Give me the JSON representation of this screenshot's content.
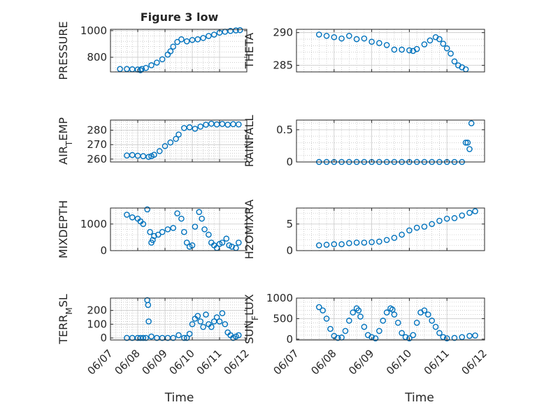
{
  "figure": {
    "title": "Figure 3 low",
    "marker_color": "#0072BD",
    "axis_color": "#262626",
    "grid_color": "#b0b0b0"
  },
  "chart_data": [
    {
      "type": "scatter",
      "ylabel": "PRESSURE",
      "title": "Figure 3 low",
      "xlim": [
        0,
        5
      ],
      "ylim": [
        690,
        1010
      ],
      "yticks": [
        800,
        1000
      ],
      "x": [
        0.35,
        0.6,
        0.8,
        1.0,
        1.1,
        1.15,
        1.3,
        1.5,
        1.7,
        1.9,
        2.1,
        2.2,
        2.3,
        2.45,
        2.6,
        2.8,
        3.0,
        3.2,
        3.4,
        3.6,
        3.8,
        4.0,
        4.2,
        4.4,
        4.6,
        4.75
      ],
      "y": [
        712,
        712,
        710,
        708,
        703,
        712,
        720,
        740,
        760,
        785,
        820,
        845,
        880,
        915,
        935,
        920,
        930,
        935,
        945,
        960,
        970,
        985,
        992,
        998,
        1002,
        1004
      ]
    },
    {
      "type": "scatter",
      "ylabel": "THETA",
      "xlim": [
        0,
        5
      ],
      "ylim": [
        284,
        290.5
      ],
      "yticks": [
        285,
        290
      ],
      "x": [
        0.6,
        0.8,
        1.0,
        1.2,
        1.4,
        1.6,
        1.8,
        2.0,
        2.2,
        2.4,
        2.6,
        2.8,
        3.0,
        3.1,
        3.2,
        3.4,
        3.55,
        3.7,
        3.8,
        3.9,
        4.0,
        4.1,
        4.2,
        4.3,
        4.4,
        4.5
      ],
      "y": [
        289.7,
        289.5,
        289.3,
        289.1,
        289.5,
        289.0,
        289.1,
        288.6,
        288.4,
        288.1,
        287.4,
        287.4,
        287.3,
        287.2,
        287.5,
        288.2,
        288.8,
        289.3,
        289.0,
        288.3,
        287.6,
        286.8,
        285.6,
        285.0,
        284.7,
        284.4
      ]
    },
    {
      "type": "scatter",
      "ylabel": "AIR_TEMP",
      "xlim": [
        0,
        5
      ],
      "ylim": [
        258,
        287
      ],
      "yticks": [
        260,
        270,
        280
      ],
      "x": [
        0.6,
        0.8,
        1.0,
        1.2,
        1.4,
        1.5,
        1.6,
        1.8,
        2.0,
        2.2,
        2.4,
        2.5,
        2.7,
        2.9,
        3.1,
        3.3,
        3.5,
        3.7,
        3.9,
        4.1,
        4.3,
        4.5,
        4.7
      ],
      "y": [
        262.5,
        262.8,
        262.3,
        262.0,
        261.5,
        262.0,
        263.0,
        265.5,
        269.0,
        271.5,
        274.0,
        277.0,
        281.5,
        282.0,
        281.0,
        282.5,
        283.8,
        284.5,
        284.0,
        284.3,
        283.8,
        284.2,
        284.0
      ]
    },
    {
      "type": "scatter",
      "ylabel": "RAINFALL",
      "xlim": [
        0,
        5
      ],
      "ylim": [
        0,
        0.65
      ],
      "yticks": [
        0,
        0.5
      ],
      "x": [
        0.6,
        0.8,
        1.0,
        1.2,
        1.4,
        1.6,
        1.8,
        2.0,
        2.2,
        2.4,
        2.6,
        2.8,
        3.0,
        3.2,
        3.4,
        3.6,
        3.8,
        4.0,
        4.2,
        4.4,
        4.5,
        4.55,
        4.6,
        4.65
      ],
      "y": [
        0,
        0,
        0,
        0,
        0,
        0,
        0,
        0,
        0,
        0,
        0,
        0,
        0,
        0,
        0,
        0,
        0,
        0,
        0,
        0,
        0.3,
        0.3,
        0.2,
        0.6
      ]
    },
    {
      "type": "scatter",
      "ylabel": "MIXDEPTH",
      "xlim": [
        0,
        5
      ],
      "ylim": [
        0,
        1600
      ],
      "yticks": [
        0,
        1000
      ],
      "x": [
        0.6,
        0.8,
        1.0,
        1.1,
        1.2,
        1.35,
        1.45,
        1.5,
        1.55,
        1.6,
        1.75,
        1.9,
        2.1,
        2.3,
        2.45,
        2.6,
        2.7,
        2.8,
        2.9,
        3.0,
        3.1,
        3.25,
        3.35,
        3.45,
        3.6,
        3.7,
        3.8,
        3.9,
        4.0,
        4.1,
        4.25,
        4.35,
        4.45,
        4.6,
        4.7
      ],
      "y": [
        1350,
        1250,
        1200,
        1100,
        1000,
        1550,
        700,
        300,
        400,
        550,
        600,
        700,
        800,
        850,
        1400,
        1200,
        700,
        300,
        150,
        200,
        900,
        1450,
        1200,
        800,
        600,
        300,
        200,
        100,
        250,
        300,
        450,
        200,
        150,
        100,
        300
      ]
    },
    {
      "type": "scatter",
      "ylabel": "H2OMIXRA",
      "xlim": [
        0,
        5
      ],
      "ylim": [
        0,
        8
      ],
      "yticks": [
        0,
        5
      ],
      "x": [
        0.6,
        0.8,
        1.0,
        1.2,
        1.4,
        1.6,
        1.8,
        2.0,
        2.2,
        2.4,
        2.6,
        2.8,
        3.0,
        3.2,
        3.4,
        3.6,
        3.8,
        4.0,
        4.2,
        4.4,
        4.6,
        4.75
      ],
      "y": [
        1.0,
        1.1,
        1.2,
        1.2,
        1.4,
        1.5,
        1.5,
        1.6,
        1.7,
        2.0,
        2.4,
        3.0,
        3.8,
        4.3,
        4.5,
        5.0,
        5.6,
        6.0,
        6.1,
        6.6,
        7.1,
        7.4
      ]
    },
    {
      "type": "scatter",
      "ylabel": "TERR_MSL",
      "xlim": [
        0,
        5
      ],
      "ylim": [
        -15,
        290
      ],
      "yticks": [
        0,
        100,
        200
      ],
      "x": [
        0.6,
        0.8,
        1.0,
        1.1,
        1.2,
        1.3,
        1.35,
        1.38,
        1.4,
        1.5,
        1.7,
        1.9,
        2.1,
        2.3,
        2.5,
        2.7,
        2.8,
        2.9,
        3.0,
        3.1,
        3.2,
        3.3,
        3.4,
        3.5,
        3.6,
        3.7,
        3.8,
        3.9,
        4.0,
        4.1,
        4.2,
        4.3,
        4.4,
        4.5,
        4.6,
        4.7
      ],
      "y": [
        0,
        0,
        0,
        0,
        0,
        0,
        275,
        240,
        120,
        10,
        0,
        0,
        0,
        0,
        20,
        0,
        0,
        30,
        100,
        140,
        160,
        120,
        80,
        170,
        100,
        80,
        120,
        150,
        120,
        180,
        100,
        40,
        20,
        0,
        10,
        20
      ]
    },
    {
      "type": "scatter",
      "ylabel": "SUN_FLUX",
      "xlim": [
        0,
        5
      ],
      "ylim": [
        -20,
        1000
      ],
      "yticks": [
        0,
        500,
        1000
      ],
      "x": [
        0.6,
        0.7,
        0.8,
        0.9,
        1.0,
        1.1,
        1.2,
        1.3,
        1.4,
        1.5,
        1.6,
        1.65,
        1.7,
        1.8,
        1.9,
        2.0,
        2.1,
        2.2,
        2.3,
        2.4,
        2.5,
        2.55,
        2.6,
        2.7,
        2.8,
        2.9,
        3.0,
        3.1,
        3.2,
        3.3,
        3.4,
        3.5,
        3.6,
        3.7,
        3.8,
        3.9,
        4.0,
        4.2,
        4.4,
        4.6,
        4.75
      ],
      "y": [
        780,
        700,
        500,
        250,
        80,
        30,
        40,
        200,
        450,
        650,
        750,
        700,
        550,
        300,
        100,
        50,
        20,
        200,
        450,
        650,
        750,
        720,
        600,
        400,
        150,
        50,
        20,
        100,
        400,
        650,
        700,
        600,
        450,
        300,
        150,
        50,
        20,
        30,
        50,
        80,
        90
      ]
    }
  ],
  "x_axis": {
    "tick_labels": [
      "06/07",
      "06/08",
      "06/09",
      "06/10",
      "06/11",
      "06/12"
    ],
    "label": "Time"
  }
}
